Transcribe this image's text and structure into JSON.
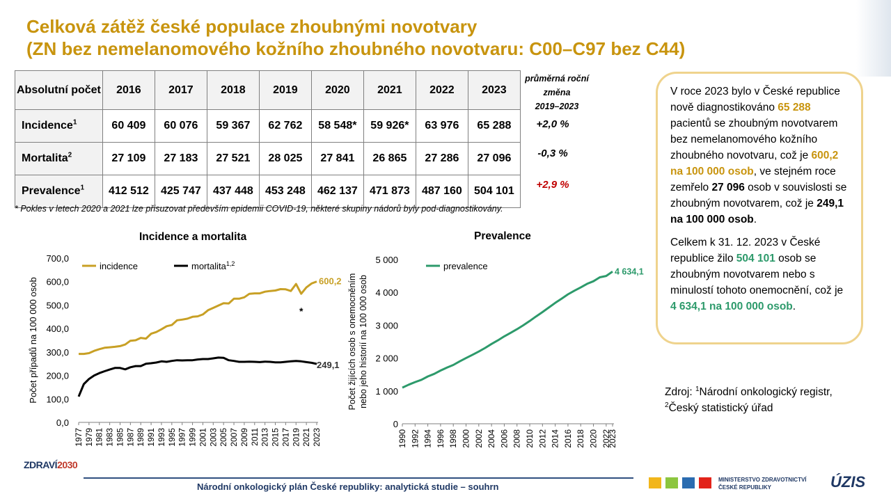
{
  "title": {
    "line1": "Celková zátěž české populace zhoubnými novotvary",
    "line2": "(ZN bez nemelanomového kožního zhoubného novotvaru: C00–C97 bez C44)"
  },
  "table": {
    "header_label": "Absolutní počet",
    "years": [
      "2016",
      "2017",
      "2018",
      "2019",
      "2020",
      "2021",
      "2022",
      "2023"
    ],
    "rows": [
      {
        "label": "Incidence",
        "sup": "1",
        "values": [
          "60 409",
          "60 076",
          "59 367",
          "62 762",
          "58 548*",
          "59 926*",
          "63 976",
          "65 288"
        ],
        "change": "+2,0 %",
        "change_color": "#000000"
      },
      {
        "label": "Mortalita",
        "sup": "2",
        "values": [
          "27 109",
          "27 183",
          "27 521",
          "28 025",
          "27 841",
          "26 865",
          "27 286",
          "27 096"
        ],
        "change": "-0,3 %",
        "change_color": "#000000"
      },
      {
        "label": "Prevalence",
        "sup": "1",
        "values": [
          "412 512",
          "425 747",
          "437 448",
          "453 248",
          "462 137",
          "471 873",
          "487 160",
          "504 101"
        ],
        "change": "+2,9 %",
        "change_color": "#c00000"
      }
    ],
    "change_header": {
      "line1": "průměrná roční",
      "line2": "změna",
      "line3": "2019–2023"
    }
  },
  "note": "* Pokles v letech 2020 a 2021 lze přisuzovat především epidemii COVID-19, některé skupiny nádorů byly pod-diagnostikovány.",
  "infobox": {
    "p1_a": "V roce 2023 bylo v České republice nově diagnostikováno ",
    "p1_b": "65 288",
    "p1_c": " pacientů se zhoubným novotvarem bez nemelanomového kožního zhoubného novotvaru, což je ",
    "p1_d": "600,2 na 100 000 osob",
    "p1_e": ", ve stejném roce zemřelo ",
    "p1_f": "27 096",
    "p1_g": " osob v souvislosti se zhoubným novotvarem, což je ",
    "p1_h": "249,1 na 100 000 osob",
    "p1_i": ".",
    "p2_a": "Celkem k 31. 12. 2023 v České republice žilo ",
    "p2_b": "504 101",
    "p2_c": " osob se zhoubným novotvarem nebo s minulostí tohoto onemocnění, což je ",
    "p2_d": "4 634,1 na 100 000 osob",
    "p2_e": "."
  },
  "source": {
    "prefix": "Zdroj: ",
    "sup1": "1",
    "text1": "Národní onkologický registr,",
    "sup2": "2",
    "text2": "Český statistický úřad"
  },
  "chart_data": [
    {
      "type": "line",
      "title": "Incidence a mortalita",
      "ylabel": "Počet případů na 100 000 osob",
      "xlabel": "",
      "ylim": [
        0,
        700
      ],
      "yticks": [
        "0,0",
        "100,0",
        "200,0",
        "300,0",
        "400,0",
        "500,0",
        "600,0",
        "700,0"
      ],
      "x": [
        1977,
        1978,
        1979,
        1980,
        1981,
        1982,
        1983,
        1984,
        1985,
        1986,
        1987,
        1988,
        1989,
        1990,
        1991,
        1992,
        1993,
        1994,
        1995,
        1996,
        1997,
        1998,
        1999,
        2000,
        2001,
        2002,
        2003,
        2004,
        2005,
        2006,
        2007,
        2008,
        2009,
        2010,
        2011,
        2012,
        2013,
        2014,
        2015,
        2016,
        2017,
        2018,
        2019,
        2020,
        2021,
        2022,
        2023
      ],
      "xtick_labels": [
        "1977",
        "1979",
        "1981",
        "1983",
        "1985",
        "1987",
        "1989",
        "1991",
        "1993",
        "1995",
        "1997",
        "1999",
        "2001",
        "2003",
        "2005",
        "2007",
        "2009",
        "2011",
        "2013",
        "2015",
        "2017",
        "2019",
        "2021",
        "2023"
      ],
      "series": [
        {
          "name": "incidence",
          "color": "#c8a025",
          "values": [
            292,
            292,
            295,
            305,
            312,
            318,
            320,
            322,
            325,
            332,
            348,
            350,
            360,
            357,
            378,
            385,
            397,
            410,
            415,
            435,
            438,
            442,
            450,
            452,
            460,
            478,
            488,
            498,
            508,
            507,
            527,
            527,
            533,
            548,
            550,
            550,
            557,
            560,
            562,
            568,
            567,
            560,
            590,
            548,
            575,
            592,
            600.2
          ]
        },
        {
          "name": "mortalita",
          "sup": "1,2",
          "color": "#000000",
          "values": [
            110,
            163,
            185,
            200,
            210,
            218,
            225,
            232,
            232,
            226,
            235,
            240,
            240,
            250,
            252,
            255,
            260,
            258,
            262,
            265,
            264,
            265,
            265,
            268,
            270,
            270,
            273,
            276,
            275,
            265,
            262,
            258,
            258,
            259,
            258,
            257,
            259,
            258,
            256,
            256,
            258,
            260,
            262,
            260,
            257,
            254,
            249.1
          ]
        }
      ],
      "end_labels": {
        "incidence": "600,2",
        "mortalita": "249,1"
      },
      "annotation": "*",
      "legend": "top"
    },
    {
      "type": "line",
      "title": "Prevalence",
      "ylabel_line1": "Počet žijících osob s onemocněním",
      "ylabel_line2": "nebo jeho historií na 100 000 osob",
      "ylim": [
        0,
        5000
      ],
      "yticks": [
        "0",
        "1 000",
        "2 000",
        "3 000",
        "4 000",
        "5 000"
      ],
      "x": [
        1990,
        1991,
        1992,
        1993,
        1994,
        1995,
        1996,
        1997,
        1998,
        1999,
        2000,
        2001,
        2002,
        2003,
        2004,
        2005,
        2006,
        2007,
        2008,
        2009,
        2010,
        2011,
        2012,
        2013,
        2014,
        2015,
        2016,
        2017,
        2018,
        2019,
        2020,
        2021,
        2022,
        2023
      ],
      "xtick_labels": [
        "1990",
        "1992",
        "1994",
        "1996",
        "1998",
        "2000",
        "2002",
        "2004",
        "2006",
        "2008",
        "2010",
        "2012",
        "2014",
        "2016",
        "2018",
        "2020",
        "2022",
        "2023"
      ],
      "series": [
        {
          "name": "prevalence",
          "color": "#2d9a6b",
          "values": [
            1100,
            1190,
            1270,
            1340,
            1440,
            1520,
            1620,
            1710,
            1790,
            1900,
            2000,
            2100,
            2200,
            2310,
            2430,
            2540,
            2660,
            2770,
            2880,
            3000,
            3130,
            3270,
            3400,
            3540,
            3680,
            3810,
            3940,
            4050,
            4150,
            4260,
            4340,
            4460,
            4500,
            4634.1
          ]
        }
      ],
      "end_label": "4 634,1",
      "legend": "top-left"
    }
  ],
  "footer": "Národní onkologický plán České republiky: analytická studie – souhrn",
  "logos": {
    "zdravi": "ZDRAVÍ",
    "zdravi_year": "2030",
    "ministry_line1": "MINISTERSTVO ZDRAVOTNICTVÍ",
    "ministry_line2": "ČESKÉ REPUBLIKY",
    "uzis": "ÚZIS"
  }
}
